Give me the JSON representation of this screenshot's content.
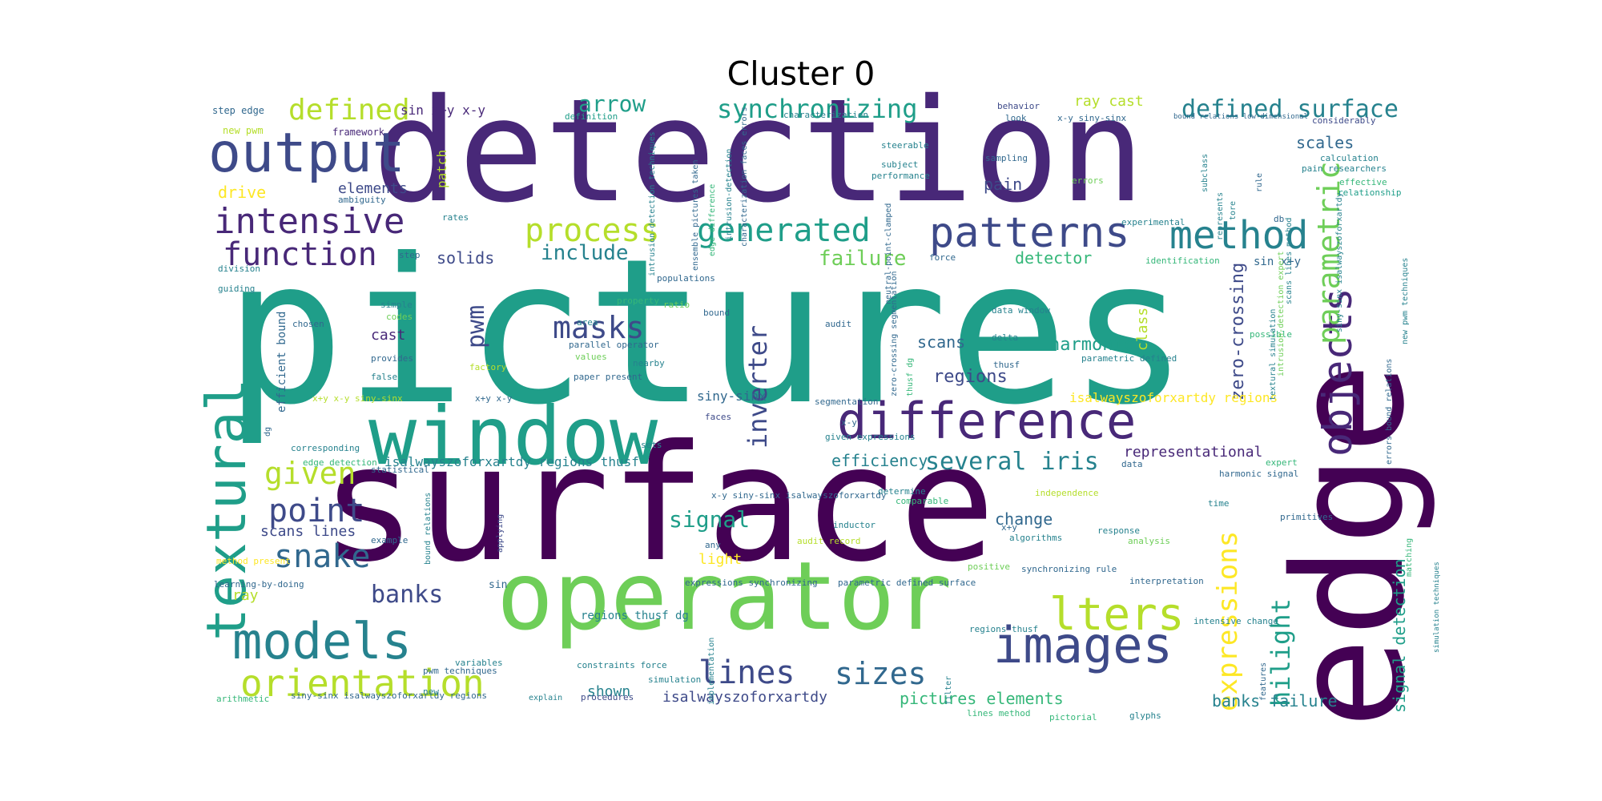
{
  "title": "Cluster 0",
  "palette": [
    "#440154",
    "#482878",
    "#3e4a89",
    "#31688e",
    "#26828e",
    "#1f9e89",
    "#35b779",
    "#6ece58",
    "#b5de2b",
    "#fde725"
  ],
  "words": [
    {
      "text": "pictures",
      "c": 5
    },
    {
      "text": "surface",
      "c": 0
    },
    {
      "text": "detection",
      "c": 1
    },
    {
      "text": "edge",
      "c": 0
    },
    {
      "text": "operator",
      "c": 7
    },
    {
      "text": "window",
      "c": 5
    },
    {
      "text": "textural",
      "c": 5
    },
    {
      "text": "difference",
      "c": 1
    },
    {
      "text": "output",
      "c": 2
    },
    {
      "text": "images",
      "c": 2
    },
    {
      "text": "models",
      "c": 4
    },
    {
      "text": "objects",
      "c": 1
    },
    {
      "text": "lters",
      "c": 8
    },
    {
      "text": "patterns",
      "c": 2
    },
    {
      "text": "method",
      "c": 4
    },
    {
      "text": "orientation",
      "c": 8
    },
    {
      "text": "intensive",
      "c": 1
    },
    {
      "text": "function",
      "c": 1
    },
    {
      "text": "generated",
      "c": 5
    },
    {
      "text": "process",
      "c": 8
    },
    {
      "text": "parametric",
      "c": 7
    },
    {
      "text": "expressions",
      "c": 9
    },
    {
      "text": "hilight",
      "c": 5
    },
    {
      "text": "inverter",
      "c": 2
    },
    {
      "text": "masks",
      "c": 2
    },
    {
      "text": "lines",
      "c": 2
    },
    {
      "text": "sizes",
      "c": 3
    },
    {
      "text": "point",
      "c": 2
    },
    {
      "text": "snake",
      "c": 3
    },
    {
      "text": "given",
      "c": 8
    },
    {
      "text": "defined",
      "c": 8
    },
    {
      "text": "synchronizing",
      "c": 5
    },
    {
      "text": "defined surface",
      "c": 4
    },
    {
      "text": "pwm",
      "c": 2
    },
    {
      "text": "several iris",
      "c": 4
    },
    {
      "text": "banks",
      "c": 2
    },
    {
      "text": "arrow",
      "c": 5
    },
    {
      "text": "failure",
      "c": 7
    },
    {
      "text": "include",
      "c": 4
    },
    {
      "text": "signal",
      "c": 5
    },
    {
      "text": "zero-crossing",
      "c": 2
    },
    {
      "text": "signal detection",
      "c": 5
    },
    {
      "text": "efficiency",
      "c": 4
    },
    {
      "text": "harmonic",
      "c": 5
    },
    {
      "text": "regions",
      "c": 2
    },
    {
      "text": "scales",
      "c": 3
    },
    {
      "text": "elements",
      "c": 2
    },
    {
      "text": "ray cast",
      "c": 8
    },
    {
      "text": "detector",
      "c": 6
    },
    {
      "text": "pain",
      "c": 2
    },
    {
      "text": "scans",
      "c": 3
    },
    {
      "text": "solids",
      "c": 2
    },
    {
      "text": "change",
      "c": 3
    },
    {
      "text": "representational",
      "c": 1
    },
    {
      "text": "pictures elements",
      "c": 6
    },
    {
      "text": "banks failure",
      "c": 4
    },
    {
      "text": "isalwayszoforxartdy",
      "c": 2
    },
    {
      "text": "scans lines",
      "c": 2
    },
    {
      "text": "drive",
      "c": 9
    },
    {
      "text": "ray",
      "c": 8
    },
    {
      "text": "cast",
      "c": 1
    },
    {
      "text": "light",
      "c": 9
    },
    {
      "text": "class",
      "c": 8
    },
    {
      "text": "shown",
      "c": 4
    },
    {
      "text": "patch",
      "c": 8
    },
    {
      "text": "isalwayszoforxartdy regions",
      "c": 9
    },
    {
      "text": "isalwayszoforxartdy regions thusf",
      "c": 4
    },
    {
      "text": "regions thusf dg",
      "c": 4
    },
    {
      "text": "siny-sinx",
      "c": 3
    },
    {
      "text": "sin x+y x-y",
      "c": 1
    },
    {
      "text": "sin x+y",
      "c": 3
    },
    {
      "text": "step edge",
      "c": 3
    },
    {
      "text": "new pwm",
      "c": 8
    },
    {
      "text": "framework",
      "c": 1
    },
    {
      "text": "ambiguity",
      "c": 3
    },
    {
      "text": "rates",
      "c": 4
    },
    {
      "text": "step",
      "c": 3
    },
    {
      "text": "division",
      "c": 4
    },
    {
      "text": "guiding",
      "c": 4
    },
    {
      "text": "simple",
      "c": 4
    },
    {
      "text": "codes",
      "c": 7
    },
    {
      "text": "chosen",
      "c": 3
    },
    {
      "text": "provides",
      "c": 3
    },
    {
      "text": "false",
      "c": 4
    },
    {
      "text": "corresponding",
      "c": 4
    },
    {
      "text": "edge detection",
      "c": 6
    },
    {
      "text": "statistical",
      "c": 3
    },
    {
      "text": "example",
      "c": 3
    },
    {
      "text": "bound relations",
      "c": 4
    },
    {
      "text": "method present",
      "c": 9
    },
    {
      "text": "learning-by-doing",
      "c": 3
    },
    {
      "text": "arithmetic",
      "c": 6
    },
    {
      "text": "siny-sinx isalwayszoforxartdy regions",
      "c": 3
    },
    {
      "text": "explain",
      "c": 4
    },
    {
      "text": "procedures",
      "c": 2
    },
    {
      "text": "variables",
      "c": 4
    },
    {
      "text": "constraints force",
      "c": 4
    },
    {
      "text": "simulation",
      "c": 4
    },
    {
      "text": "new",
      "c": 4
    },
    {
      "text": "pwm techniques",
      "c": 3
    },
    {
      "text": "sin",
      "c": 3
    },
    {
      "text": "applying",
      "c": 2
    },
    {
      "text": "definition",
      "c": 5
    },
    {
      "text": "characterization",
      "c": 4
    },
    {
      "text": "look",
      "c": 3
    },
    {
      "text": "behavior",
      "c": 2
    },
    {
      "text": "x-y siny-sinx",
      "c": 3
    },
    {
      "text": "bound relations low-dimensional",
      "c": 3
    },
    {
      "text": "considerably",
      "c": 2
    },
    {
      "text": "calculation",
      "c": 4
    },
    {
      "text": "pain researchers",
      "c": 4
    },
    {
      "text": "rule",
      "c": 3
    },
    {
      "text": "effective",
      "c": 6
    },
    {
      "text": "relationship",
      "c": 5
    },
    {
      "text": "steerable",
      "c": 4
    },
    {
      "text": "sampling",
      "c": 3
    },
    {
      "text": "subject",
      "c": 4
    },
    {
      "text": "performance",
      "c": 4
    },
    {
      "text": "errors",
      "c": 7
    },
    {
      "text": "experimental",
      "c": 4
    },
    {
      "text": "db",
      "c": 3
    },
    {
      "text": "identification",
      "c": 6
    },
    {
      "text": "force",
      "c": 3
    },
    {
      "text": "populations",
      "c": 3
    },
    {
      "text": "property",
      "c": 6
    },
    {
      "text": "ratio",
      "c": 7
    },
    {
      "text": "area",
      "c": 4
    },
    {
      "text": "bound",
      "c": 3
    },
    {
      "text": "audit",
      "c": 3
    },
    {
      "text": "data window",
      "c": 4
    },
    {
      "text": "delta",
      "c": 4
    },
    {
      "text": "thusf",
      "c": 3
    },
    {
      "text": "values",
      "c": 7
    },
    {
      "text": "factory",
      "c": 8
    },
    {
      "text": "nearby",
      "c": 4
    },
    {
      "text": "parallel operator",
      "c": 3
    },
    {
      "text": "parametric defined",
      "c": 4
    },
    {
      "text": "possible",
      "c": 6
    },
    {
      "text": "paper present",
      "c": 3
    },
    {
      "text": "segmentation",
      "c": 3
    },
    {
      "text": "x+y x-y siny-sinx",
      "c": 8
    },
    {
      "text": "x+y x-y",
      "c": 3
    },
    {
      "text": "faces",
      "c": 2
    },
    {
      "text": "x-y",
      "c": 3
    },
    {
      "text": "sets",
      "c": 4
    },
    {
      "text": "given expressions",
      "c": 4
    },
    {
      "text": "expert",
      "c": 6
    },
    {
      "text": "harmonic signal",
      "c": 3
    },
    {
      "text": "data",
      "c": 3
    },
    {
      "text": "time",
      "c": 4
    },
    {
      "text": "independence",
      "c": 8
    },
    {
      "text": "determine",
      "c": 4
    },
    {
      "text": "comparable",
      "c": 6
    },
    {
      "text": "x-y siny-sinx isalwayszoforxartdy",
      "c": 3
    },
    {
      "text": "primitives",
      "c": 3
    },
    {
      "text": "response",
      "c": 4
    },
    {
      "text": "algorithms",
      "c": 4
    },
    {
      "text": "analysis",
      "c": 7
    },
    {
      "text": "x+y",
      "c": 3
    },
    {
      "text": "inductor",
      "c": 4
    },
    {
      "text": "audit record",
      "c": 8
    },
    {
      "text": "any",
      "c": 3
    },
    {
      "text": "positive",
      "c": 7
    },
    {
      "text": "interpretation",
      "c": 3
    },
    {
      "text": "synchronizing rule",
      "c": 3
    },
    {
      "text": "expressions synchronizing",
      "c": 3
    },
    {
      "text": "parametric defined surface",
      "c": 3
    },
    {
      "text": "regions thusf",
      "c": 4
    },
    {
      "text": "intensive change",
      "c": 4
    },
    {
      "text": "features",
      "c": 3
    },
    {
      "text": "lines method",
      "c": 6
    },
    {
      "text": "pictorial",
      "c": 6
    },
    {
      "text": "glyphs",
      "c": 4
    },
    {
      "text": "filter",
      "c": 4
    },
    {
      "text": "implementation",
      "c": 4
    },
    {
      "text": "intrusion-detection",
      "c": 4
    },
    {
      "text": "edge difference",
      "c": 6
    },
    {
      "text": "ensemble pictures taken",
      "c": 3
    },
    {
      "text": "intrusion-detection techniques",
      "c": 4
    },
    {
      "text": "characterization faces errors",
      "c": 3
    },
    {
      "text": "zero-crossing segmentation",
      "c": 3
    },
    {
      "text": "thusf dg",
      "c": 6
    },
    {
      "text": "neutral-point-clamped",
      "c": 3
    },
    {
      "text": "matching",
      "c": 6
    },
    {
      "text": "textural simulation",
      "c": 4
    },
    {
      "text": "new pwm techniques",
      "c": 4
    },
    {
      "text": "siny-sinx isalwayszoforxartdy",
      "c": 4
    },
    {
      "text": "errors bound relations",
      "c": 3
    },
    {
      "text": "subclass",
      "c": 4
    },
    {
      "text": "represents",
      "c": 4
    },
    {
      "text": "tore",
      "c": 4
    },
    {
      "text": "scans lines method",
      "c": 4
    },
    {
      "text": "intrusion-detection expert",
      "c": 7
    },
    {
      "text": "dg",
      "c": 3
    },
    {
      "text": "efficient bound",
      "c": 3
    },
    {
      "text": "simulation techniques",
      "c": 4
    }
  ]
}
